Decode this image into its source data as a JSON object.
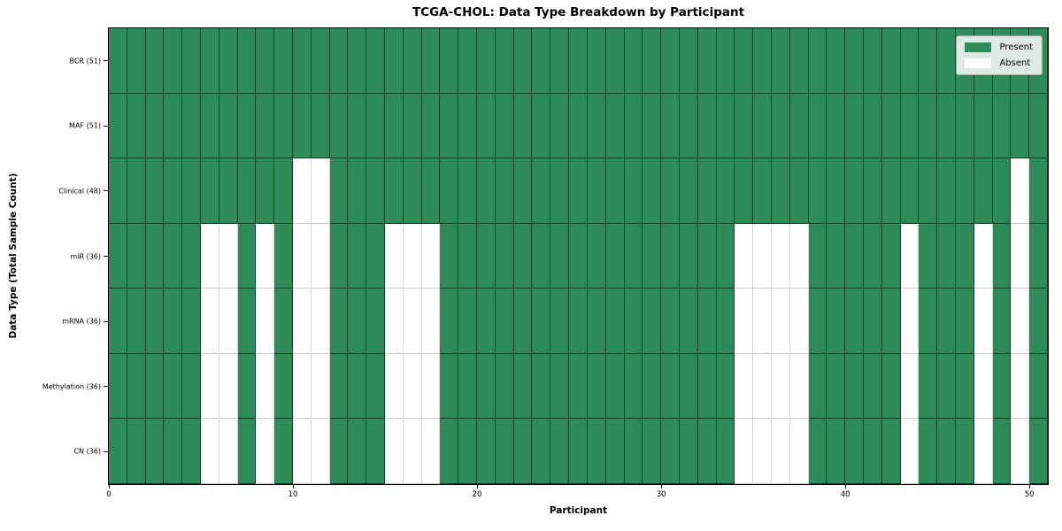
{
  "chart": {
    "title": "TCGA-CHOL: Data Type Breakdown by Participant",
    "xlabel": "Participant",
    "ylabel": "Data Type (Total Sample Count)"
  },
  "legend": {
    "present_label": "Present",
    "absent_label": "Absent",
    "position": "upper right"
  },
  "colors": {
    "present": "#2e8b57",
    "absent": "#ffffff",
    "plot_border": "#000000",
    "grid_light": "#d6d6d6",
    "legend_background": "#dfe9e3"
  },
  "chart_data": {
    "type": "heatmap",
    "title": "TCGA-CHOL: Data Type Breakdown by Participant",
    "xlabel": "Participant",
    "ylabel": "Data Type (Total Sample Count)",
    "n_participants": 51,
    "x_range": [
      0,
      51
    ],
    "x_ticks": [
      0,
      10,
      20,
      30,
      40,
      50
    ],
    "grid": true,
    "legend_entries": [
      "Present",
      "Absent"
    ],
    "legend_position": "upper right",
    "rows": [
      {
        "label": "BCR (51)",
        "data_type": "BCR",
        "total": 51,
        "absent_participants": []
      },
      {
        "label": "MAF (51)",
        "data_type": "MAF",
        "total": 51,
        "absent_participants": []
      },
      {
        "label": "Clinical (48)",
        "data_type": "Clinical",
        "total": 48,
        "absent_participants": [
          10,
          11,
          49
        ]
      },
      {
        "label": "miR (36)",
        "data_type": "miR",
        "total": 36,
        "absent_participants": [
          5,
          6,
          8,
          10,
          11,
          15,
          16,
          17,
          34,
          35,
          36,
          37,
          43,
          47,
          49
        ]
      },
      {
        "label": "mRNA (36)",
        "data_type": "mRNA",
        "total": 36,
        "absent_participants": [
          5,
          6,
          8,
          10,
          11,
          15,
          16,
          17,
          34,
          35,
          36,
          37,
          43,
          47,
          49
        ]
      },
      {
        "label": "Methylation (36)",
        "data_type": "Methylation",
        "total": 36,
        "absent_participants": [
          5,
          6,
          8,
          10,
          11,
          15,
          16,
          17,
          34,
          35,
          36,
          37,
          43,
          47,
          49
        ]
      },
      {
        "label": "CN (36)",
        "data_type": "CN",
        "total": 36,
        "absent_participants": [
          5,
          6,
          8,
          10,
          11,
          15,
          16,
          17,
          34,
          35,
          36,
          37,
          43,
          47,
          49
        ]
      }
    ]
  }
}
